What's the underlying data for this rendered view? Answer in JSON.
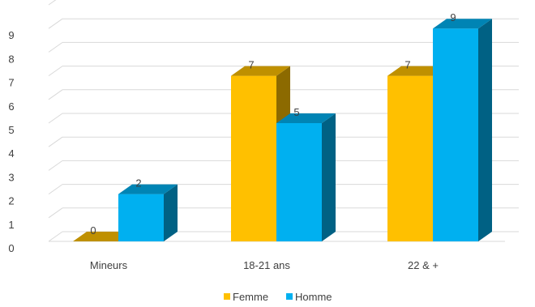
{
  "chart_data": {
    "type": "bar",
    "title": "",
    "xlabel": "",
    "ylabel": "",
    "categories": [
      "Mineurs",
      "18-21 ans",
      "22 & +"
    ],
    "series": [
      {
        "name": "Femme",
        "values": [
          0,
          7,
          7
        ],
        "color": "#FFC000"
      },
      {
        "name": "Homme",
        "values": [
          2,
          5,
          9
        ],
        "color": "#00B0F0"
      }
    ],
    "ylim": [
      0,
      10
    ],
    "yticks": [
      "0",
      "1",
      "2",
      "3",
      "4",
      "5",
      "6",
      "7",
      "8",
      "9"
    ],
    "data_labels": [
      [
        "0",
        "7",
        "7"
      ],
      [
        "2",
        "5",
        "9"
      ]
    ],
    "legend_position": "bottom",
    "grid": true,
    "style": "3d-clustered-column"
  }
}
